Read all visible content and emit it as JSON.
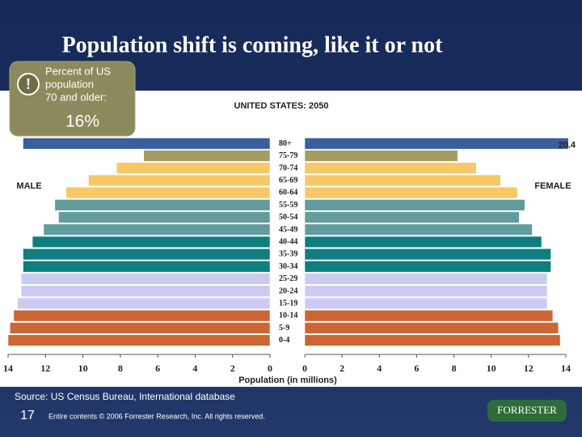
{
  "slide": {
    "title": "Population shift is coming, like it or not",
    "callout_text": [
      "Percent of US",
      "population",
      "70 and older:"
    ],
    "callout_value": "16%",
    "source": "Source: US Census Bureau, International database",
    "page_number": "17",
    "copyright": "Entire contents © 2006  Forrester Research, Inc. All rights reserved.",
    "logo": "FORRESTER"
  },
  "chart_data": {
    "type": "pyramid",
    "title": "UNITED STATES: 2050",
    "x_label": "Population (in millions)",
    "categories": [
      "80+",
      "75-79",
      "70-74",
      "65-69",
      "60-64",
      "55-59",
      "50-54",
      "45-49",
      "40-44",
      "35-39",
      "30-34",
      "25-29",
      "20-24",
      "15-19",
      "10-14",
      "5-9",
      "0-4"
    ],
    "colors": [
      "#3b5f9c",
      "#a59c62",
      "#f8c766",
      "#f8c766",
      "#f8c766",
      "#639c9c",
      "#639c9c",
      "#639c9c",
      "#0e7e7e",
      "#0e7e7e",
      "#0e7e7e",
      "#cbcbf2",
      "#cbcbf2",
      "#cbcbf2",
      "#cc6633",
      "#cc6633",
      "#cc6633"
    ],
    "series": [
      {
        "name": "MALE",
        "values": [
          13.2,
          6.75,
          8.2,
          9.7,
          10.9,
          11.5,
          11.3,
          12.1,
          12.7,
          13.2,
          13.2,
          13.3,
          13.3,
          13.5,
          13.7,
          13.9,
          14.0
        ]
      },
      {
        "name": "FEMALE",
        "values": [
          20.4,
          8.2,
          9.2,
          10.5,
          11.4,
          11.8,
          11.5,
          12.2,
          12.7,
          13.2,
          13.2,
          13.0,
          13.0,
          13.0,
          13.3,
          13.6,
          13.7
        ]
      }
    ],
    "xlim": [
      0,
      14
    ],
    "xticks": [
      0,
      2,
      4,
      6,
      8,
      10,
      12,
      14
    ]
  }
}
